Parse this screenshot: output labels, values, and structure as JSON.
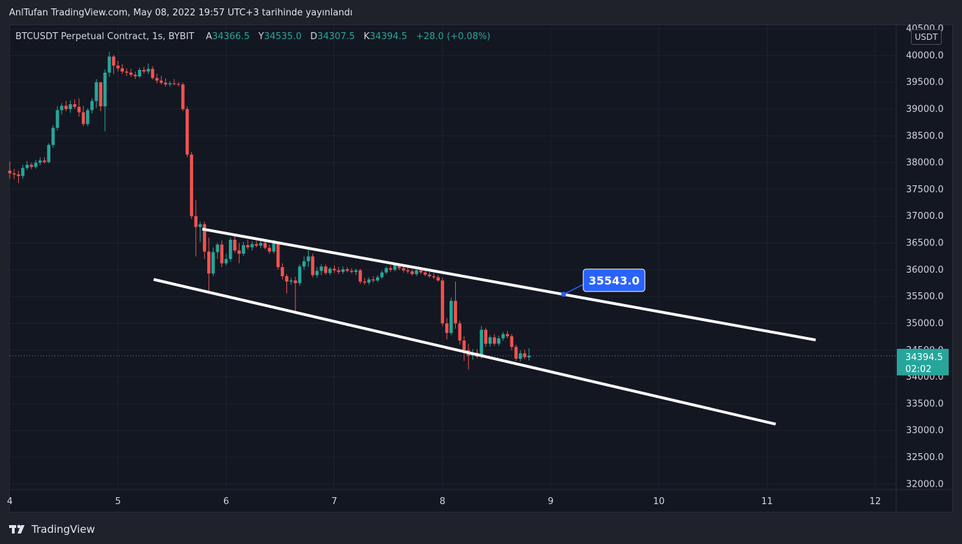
{
  "header": {
    "publish_text": "AnlTufan TradingView.com, May 08, 2022 19:57 UTC+3 tarihinde yayınlandı"
  },
  "legend": {
    "symbol": "BTCUSDT Perpetual Contract, 1s, BYBIT",
    "open_label": "A",
    "open_value": "34366.5",
    "high_label": "Y",
    "high_value": "34535.0",
    "low_label": "D",
    "low_value": "34307.5",
    "close_label": "K",
    "close_value": "34394.5",
    "change": "+28.0 (+0.08%)"
  },
  "currency_label": "USDT",
  "footer": {
    "brand": "TradingView"
  },
  "colors": {
    "background": "#131722",
    "up": "#26a69a",
    "down": "#ef5350",
    "trendline": "#ffffff",
    "callout": "#2962ff",
    "price_tag": "#26a69a"
  },
  "chart_data": {
    "type": "candlestick",
    "ylim": [
      31900,
      40500
    ],
    "xlim": [
      4,
      12.1
    ],
    "y_ticks": [
      "32000.0",
      "32500.0",
      "33000.0",
      "33500.0",
      "34000.0",
      "34500.0",
      "35000.0",
      "35500.0",
      "36000.0",
      "36500.0",
      "37000.0",
      "37500.0",
      "38000.0",
      "38500.0",
      "39000.0",
      "39500.0",
      "40000.0",
      "40500.0"
    ],
    "x_ticks": [
      4,
      5,
      6,
      7,
      8,
      9,
      10,
      11,
      12
    ],
    "x_tick_labels": [
      "4",
      "5",
      "6",
      "7",
      "8",
      "9",
      "10",
      "11",
      "12"
    ],
    "last_price": {
      "value": 34394.5,
      "label": "34394.5",
      "countdown": "02:02"
    },
    "callout": {
      "label": "35543.0",
      "x": 9.12,
      "y": 35543.0
    },
    "trendlines": [
      {
        "name": "upper",
        "points": [
          [
            5.78,
            36760
          ],
          [
            11.45,
            34690
          ]
        ]
      },
      {
        "name": "lower",
        "points": [
          [
            5.33,
            35820
          ],
          [
            11.08,
            33120
          ]
        ]
      }
    ],
    "candles": [
      {
        "x": 4.0,
        "o": 37850,
        "h": 38020,
        "l": 37700,
        "c": 37800
      },
      {
        "x": 4.04,
        "o": 37800,
        "h": 37880,
        "l": 37690,
        "c": 37780
      },
      {
        "x": 4.08,
        "o": 37780,
        "h": 37850,
        "l": 37620,
        "c": 37750
      },
      {
        "x": 4.12,
        "o": 37750,
        "h": 37960,
        "l": 37700,
        "c": 37900
      },
      {
        "x": 4.16,
        "o": 37900,
        "h": 38030,
        "l": 37860,
        "c": 37960
      },
      {
        "x": 4.2,
        "o": 37960,
        "h": 38000,
        "l": 37880,
        "c": 37920
      },
      {
        "x": 4.24,
        "o": 37920,
        "h": 38050,
        "l": 37890,
        "c": 38000
      },
      {
        "x": 4.28,
        "o": 38000,
        "h": 38100,
        "l": 37950,
        "c": 38040
      },
      {
        "x": 4.32,
        "o": 38040,
        "h": 38100,
        "l": 37980,
        "c": 38010
      },
      {
        "x": 4.36,
        "o": 38010,
        "h": 38360,
        "l": 37990,
        "c": 38330
      },
      {
        "x": 4.4,
        "o": 38330,
        "h": 38700,
        "l": 38280,
        "c": 38650
      },
      {
        "x": 4.44,
        "o": 38650,
        "h": 39050,
        "l": 38600,
        "c": 38980
      },
      {
        "x": 4.48,
        "o": 38980,
        "h": 39110,
        "l": 38900,
        "c": 39060
      },
      {
        "x": 4.52,
        "o": 39060,
        "h": 39150,
        "l": 38960,
        "c": 39000
      },
      {
        "x": 4.56,
        "o": 39000,
        "h": 39160,
        "l": 38930,
        "c": 39090
      },
      {
        "x": 4.6,
        "o": 39090,
        "h": 39180,
        "l": 39000,
        "c": 39040
      },
      {
        "x": 4.64,
        "o": 39040,
        "h": 39200,
        "l": 38860,
        "c": 38940
      },
      {
        "x": 4.68,
        "o": 38940,
        "h": 39060,
        "l": 38680,
        "c": 38720
      },
      {
        "x": 4.72,
        "o": 38720,
        "h": 39020,
        "l": 38680,
        "c": 38980
      },
      {
        "x": 4.76,
        "o": 38980,
        "h": 39200,
        "l": 38920,
        "c": 39150
      },
      {
        "x": 4.8,
        "o": 39150,
        "h": 39560,
        "l": 39020,
        "c": 39500
      },
      {
        "x": 4.84,
        "o": 39500,
        "h": 39500,
        "l": 38960,
        "c": 39050
      },
      {
        "x": 4.88,
        "o": 39050,
        "h": 39740,
        "l": 38580,
        "c": 39680
      },
      {
        "x": 4.92,
        "o": 39680,
        "h": 40070,
        "l": 39600,
        "c": 39980
      },
      {
        "x": 4.96,
        "o": 39980,
        "h": 40010,
        "l": 39650,
        "c": 39810
      },
      {
        "x": 5.0,
        "o": 39810,
        "h": 39900,
        "l": 39700,
        "c": 39760
      },
      {
        "x": 5.04,
        "o": 39760,
        "h": 39840,
        "l": 39660,
        "c": 39700
      },
      {
        "x": 5.08,
        "o": 39700,
        "h": 39760,
        "l": 39620,
        "c": 39680
      },
      {
        "x": 5.12,
        "o": 39680,
        "h": 39750,
        "l": 39600,
        "c": 39640
      },
      {
        "x": 5.16,
        "o": 39640,
        "h": 39700,
        "l": 39560,
        "c": 39610
      },
      {
        "x": 5.2,
        "o": 39610,
        "h": 39770,
        "l": 39580,
        "c": 39730
      },
      {
        "x": 5.24,
        "o": 39730,
        "h": 39790,
        "l": 39660,
        "c": 39700
      },
      {
        "x": 5.28,
        "o": 39700,
        "h": 39850,
        "l": 39650,
        "c": 39750
      },
      {
        "x": 5.32,
        "o": 39750,
        "h": 39800,
        "l": 39550,
        "c": 39580
      },
      {
        "x": 5.36,
        "o": 39580,
        "h": 39660,
        "l": 39480,
        "c": 39530
      },
      {
        "x": 5.4,
        "o": 39530,
        "h": 39620,
        "l": 39460,
        "c": 39490
      },
      {
        "x": 5.44,
        "o": 39490,
        "h": 39570,
        "l": 39420,
        "c": 39460
      },
      {
        "x": 5.48,
        "o": 39460,
        "h": 39520,
        "l": 39420,
        "c": 39480
      },
      {
        "x": 5.52,
        "o": 39480,
        "h": 39560,
        "l": 39440,
        "c": 39470
      },
      {
        "x": 5.56,
        "o": 39470,
        "h": 39500,
        "l": 39420,
        "c": 39460
      },
      {
        "x": 5.6,
        "o": 39460,
        "h": 39490,
        "l": 38960,
        "c": 39000
      },
      {
        "x": 5.64,
        "o": 39000,
        "h": 39050,
        "l": 38100,
        "c": 38150
      },
      {
        "x": 5.68,
        "o": 38150,
        "h": 38200,
        "l": 36950,
        "c": 37000
      },
      {
        "x": 5.72,
        "o": 37000,
        "h": 37300,
        "l": 36250,
        "c": 36800
      },
      {
        "x": 5.76,
        "o": 36800,
        "h": 36900,
        "l": 36520,
        "c": 36850
      },
      {
        "x": 5.8,
        "o": 36850,
        "h": 36900,
        "l": 36200,
        "c": 36340
      },
      {
        "x": 5.84,
        "o": 36340,
        "h": 36600,
        "l": 35550,
        "c": 35930
      },
      {
        "x": 5.88,
        "o": 35930,
        "h": 36420,
        "l": 35880,
        "c": 36330
      },
      {
        "x": 5.92,
        "o": 36330,
        "h": 36500,
        "l": 36200,
        "c": 36470
      },
      {
        "x": 5.96,
        "o": 36470,
        "h": 36550,
        "l": 36050,
        "c": 36120
      },
      {
        "x": 6.0,
        "o": 36120,
        "h": 36300,
        "l": 36080,
        "c": 36200
      },
      {
        "x": 6.04,
        "o": 36200,
        "h": 36600,
        "l": 36150,
        "c": 36560
      },
      {
        "x": 6.08,
        "o": 36560,
        "h": 36650,
        "l": 36320,
        "c": 36360
      },
      {
        "x": 6.12,
        "o": 36360,
        "h": 36500,
        "l": 36120,
        "c": 36300
      },
      {
        "x": 6.16,
        "o": 36300,
        "h": 36520,
        "l": 36260,
        "c": 36460
      },
      {
        "x": 6.2,
        "o": 36460,
        "h": 36560,
        "l": 36380,
        "c": 36420
      },
      {
        "x": 6.24,
        "o": 36420,
        "h": 36530,
        "l": 36360,
        "c": 36480
      },
      {
        "x": 6.28,
        "o": 36480,
        "h": 36540,
        "l": 36420,
        "c": 36450
      },
      {
        "x": 6.32,
        "o": 36450,
        "h": 36560,
        "l": 36400,
        "c": 36500
      },
      {
        "x": 6.36,
        "o": 36500,
        "h": 36560,
        "l": 36380,
        "c": 36410
      },
      {
        "x": 6.4,
        "o": 36410,
        "h": 36480,
        "l": 36300,
        "c": 36340
      },
      {
        "x": 6.44,
        "o": 36340,
        "h": 36560,
        "l": 36300,
        "c": 36500
      },
      {
        "x": 6.48,
        "o": 36500,
        "h": 36520,
        "l": 36000,
        "c": 36050
      },
      {
        "x": 6.52,
        "o": 36050,
        "h": 36120,
        "l": 35820,
        "c": 35880
      },
      {
        "x": 6.56,
        "o": 35880,
        "h": 35920,
        "l": 35560,
        "c": 35780
      },
      {
        "x": 6.6,
        "o": 35780,
        "h": 35850,
        "l": 35720,
        "c": 35800
      },
      {
        "x": 6.64,
        "o": 35800,
        "h": 35870,
        "l": 35220,
        "c": 35750
      },
      {
        "x": 6.68,
        "o": 35750,
        "h": 36100,
        "l": 35700,
        "c": 36060
      },
      {
        "x": 6.72,
        "o": 36060,
        "h": 36250,
        "l": 36000,
        "c": 36160
      },
      {
        "x": 6.76,
        "o": 36160,
        "h": 36420,
        "l": 36050,
        "c": 36250
      },
      {
        "x": 6.8,
        "o": 36250,
        "h": 36300,
        "l": 35860,
        "c": 35900
      },
      {
        "x": 6.84,
        "o": 35900,
        "h": 36050,
        "l": 35850,
        "c": 35980
      },
      {
        "x": 6.88,
        "o": 35980,
        "h": 36100,
        "l": 35900,
        "c": 36060
      },
      {
        "x": 6.92,
        "o": 36060,
        "h": 36100,
        "l": 35910,
        "c": 35940
      },
      {
        "x": 6.96,
        "o": 35940,
        "h": 36050,
        "l": 35900,
        "c": 36020
      },
      {
        "x": 7.0,
        "o": 36020,
        "h": 36080,
        "l": 35940,
        "c": 35990
      },
      {
        "x": 7.04,
        "o": 35990,
        "h": 36050,
        "l": 35920,
        "c": 35960
      },
      {
        "x": 7.08,
        "o": 35960,
        "h": 36060,
        "l": 35920,
        "c": 36010
      },
      {
        "x": 7.12,
        "o": 36010,
        "h": 36050,
        "l": 35950,
        "c": 35980
      },
      {
        "x": 7.16,
        "o": 35980,
        "h": 36030,
        "l": 35930,
        "c": 35960
      },
      {
        "x": 7.2,
        "o": 35960,
        "h": 36020,
        "l": 35900,
        "c": 35990
      },
      {
        "x": 7.24,
        "o": 35990,
        "h": 36020,
        "l": 35740,
        "c": 35780
      },
      {
        "x": 7.28,
        "o": 35780,
        "h": 35850,
        "l": 35720,
        "c": 35760
      },
      {
        "x": 7.32,
        "o": 35760,
        "h": 35860,
        "l": 35720,
        "c": 35820
      },
      {
        "x": 7.36,
        "o": 35820,
        "h": 35880,
        "l": 35760,
        "c": 35800
      },
      {
        "x": 7.4,
        "o": 35800,
        "h": 35900,
        "l": 35770,
        "c": 35860
      },
      {
        "x": 7.44,
        "o": 35860,
        "h": 35980,
        "l": 35830,
        "c": 35950
      },
      {
        "x": 7.48,
        "o": 35950,
        "h": 36060,
        "l": 35920,
        "c": 36030
      },
      {
        "x": 7.52,
        "o": 36030,
        "h": 36080,
        "l": 35960,
        "c": 36000
      },
      {
        "x": 7.56,
        "o": 36000,
        "h": 36130,
        "l": 35970,
        "c": 36090
      },
      {
        "x": 7.6,
        "o": 36090,
        "h": 36120,
        "l": 35990,
        "c": 36030
      },
      {
        "x": 7.64,
        "o": 36030,
        "h": 36080,
        "l": 35950,
        "c": 35990
      },
      {
        "x": 7.68,
        "o": 35990,
        "h": 36040,
        "l": 35930,
        "c": 35970
      },
      {
        "x": 7.72,
        "o": 35970,
        "h": 36010,
        "l": 35890,
        "c": 35920
      },
      {
        "x": 7.76,
        "o": 35920,
        "h": 36040,
        "l": 35880,
        "c": 35990
      },
      {
        "x": 7.8,
        "o": 35990,
        "h": 36020,
        "l": 35920,
        "c": 35950
      },
      {
        "x": 7.84,
        "o": 35950,
        "h": 35990,
        "l": 35880,
        "c": 35910
      },
      {
        "x": 7.88,
        "o": 35910,
        "h": 35960,
        "l": 35850,
        "c": 35880
      },
      {
        "x": 7.92,
        "o": 35880,
        "h": 35940,
        "l": 35830,
        "c": 35860
      },
      {
        "x": 7.96,
        "o": 35860,
        "h": 35900,
        "l": 35780,
        "c": 35800
      },
      {
        "x": 8.0,
        "o": 35800,
        "h": 35850,
        "l": 34950,
        "c": 35000
      },
      {
        "x": 8.04,
        "o": 35000,
        "h": 35100,
        "l": 34700,
        "c": 34820
      },
      {
        "x": 8.08,
        "o": 34820,
        "h": 35480,
        "l": 34780,
        "c": 35420
      },
      {
        "x": 8.12,
        "o": 35420,
        "h": 35780,
        "l": 34900,
        "c": 35000
      },
      {
        "x": 8.16,
        "o": 35000,
        "h": 35050,
        "l": 34600,
        "c": 34680
      },
      {
        "x": 8.2,
        "o": 34680,
        "h": 34760,
        "l": 34300,
        "c": 34500
      },
      {
        "x": 8.24,
        "o": 34500,
        "h": 34620,
        "l": 34140,
        "c": 34400
      },
      {
        "x": 8.28,
        "o": 34400,
        "h": 34520,
        "l": 34320,
        "c": 34450
      },
      {
        "x": 8.32,
        "o": 34450,
        "h": 34520,
        "l": 34350,
        "c": 34380
      },
      {
        "x": 8.36,
        "o": 34380,
        "h": 34950,
        "l": 34340,
        "c": 34880
      },
      {
        "x": 8.4,
        "o": 34880,
        "h": 34920,
        "l": 34560,
        "c": 34620
      },
      {
        "x": 8.44,
        "o": 34620,
        "h": 34780,
        "l": 34560,
        "c": 34740
      },
      {
        "x": 8.48,
        "o": 34740,
        "h": 34800,
        "l": 34580,
        "c": 34620
      },
      {
        "x": 8.52,
        "o": 34620,
        "h": 34770,
        "l": 34580,
        "c": 34720
      },
      {
        "x": 8.56,
        "o": 34720,
        "h": 34840,
        "l": 34680,
        "c": 34800
      },
      {
        "x": 8.6,
        "o": 34800,
        "h": 34860,
        "l": 34720,
        "c": 34760
      },
      {
        "x": 8.64,
        "o": 34760,
        "h": 34800,
        "l": 34500,
        "c": 34560
      },
      {
        "x": 8.68,
        "o": 34560,
        "h": 34600,
        "l": 34300,
        "c": 34340
      },
      {
        "x": 8.72,
        "o": 34340,
        "h": 34500,
        "l": 34290,
        "c": 34440
      },
      {
        "x": 8.76,
        "o": 34440,
        "h": 34510,
        "l": 34330,
        "c": 34370
      },
      {
        "x": 8.8,
        "o": 34366.5,
        "h": 34535,
        "l": 34307.5,
        "c": 34394.5
      }
    ]
  }
}
